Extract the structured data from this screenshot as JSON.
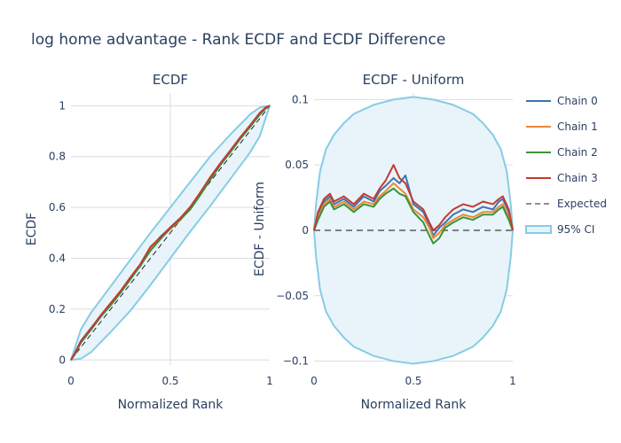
{
  "title": "log home advantage - Rank ECDF and ECDF Difference",
  "colors": {
    "chain_0": "#3b75af",
    "chain_1": "#ef8636",
    "chain_2": "#3b923b",
    "chain_3": "#c43932",
    "expected": "#222222",
    "ci_line": "#87cce4",
    "ci_fill": "#e6f3fa",
    "zero_dash": "#7f7f7f"
  },
  "legend": {
    "items": [
      {
        "key": "chain_0",
        "label": "Chain 0",
        "style": "line"
      },
      {
        "key": "chain_1",
        "label": "Chain 1",
        "style": "line"
      },
      {
        "key": "chain_2",
        "label": "Chain 2",
        "style": "line"
      },
      {
        "key": "chain_3",
        "label": "Chain 3",
        "style": "line"
      },
      {
        "key": "expected",
        "label": "Expected",
        "style": "dash"
      },
      {
        "key": "ci_line",
        "label": "95% CI",
        "style": "band"
      }
    ]
  },
  "chart_data": [
    {
      "type": "line",
      "title": "ECDF",
      "xlabel": "Normalized Rank",
      "ylabel": "ECDF",
      "xlim": [
        0,
        1
      ],
      "ylim": [
        -0.02,
        1.05
      ],
      "xticks": [
        0,
        0.5,
        1
      ],
      "xtick_labels": [
        "0",
        "0.5",
        "1"
      ],
      "yticks": [
        0,
        0.2,
        0.4,
        0.6,
        0.8,
        1
      ],
      "ytick_labels": [
        "0",
        "0.2",
        "0.4",
        "0.6",
        "0.8",
        "1"
      ],
      "grid": true,
      "ci_band": {
        "x": [
          0,
          0.05,
          0.1,
          0.2,
          0.3,
          0.4,
          0.5,
          0.6,
          0.7,
          0.8,
          0.9,
          0.95,
          1
        ],
        "lower": [
          0,
          0.005,
          0.03,
          0.11,
          0.195,
          0.295,
          0.4,
          0.505,
          0.605,
          0.71,
          0.815,
          0.88,
          1
        ],
        "upper": [
          0,
          0.12,
          0.185,
          0.29,
          0.395,
          0.5,
          0.6,
          0.7,
          0.8,
          0.885,
          0.965,
          0.993,
          1
        ]
      },
      "expected": {
        "x": [
          0,
          1
        ],
        "y": [
          0,
          1
        ]
      },
      "series": [
        {
          "key": "chain_0",
          "name": "Chain 0",
          "x": [
            0,
            0.02,
            0.05,
            0.1,
            0.15,
            0.2,
            0.25,
            0.3,
            0.35,
            0.4,
            0.45,
            0.5,
            0.55,
            0.6,
            0.65,
            0.7,
            0.75,
            0.8,
            0.85,
            0.9,
            0.95,
            0.98,
            1
          ],
          "y": [
            0,
            0.028,
            0.075,
            0.125,
            0.172,
            0.222,
            0.27,
            0.325,
            0.37,
            0.44,
            0.485,
            0.52,
            0.555,
            0.6,
            0.655,
            0.715,
            0.77,
            0.82,
            0.87,
            0.92,
            0.97,
            0.992,
            1
          ]
        },
        {
          "key": "chain_1",
          "name": "Chain 1",
          "x": [
            0,
            0.02,
            0.05,
            0.1,
            0.15,
            0.2,
            0.25,
            0.3,
            0.35,
            0.4,
            0.45,
            0.5,
            0.55,
            0.6,
            0.65,
            0.7,
            0.75,
            0.8,
            0.85,
            0.9,
            0.95,
            0.98,
            1
          ],
          "y": [
            0,
            0.025,
            0.07,
            0.12,
            0.174,
            0.219,
            0.268,
            0.322,
            0.375,
            0.435,
            0.478,
            0.515,
            0.55,
            0.598,
            0.652,
            0.712,
            0.768,
            0.818,
            0.872,
            0.918,
            0.968,
            0.99,
            1
          ]
        },
        {
          "key": "chain_2",
          "name": "Chain 2",
          "x": [
            0,
            0.02,
            0.05,
            0.1,
            0.15,
            0.2,
            0.25,
            0.3,
            0.35,
            0.4,
            0.45,
            0.5,
            0.55,
            0.6,
            0.65,
            0.7,
            0.75,
            0.8,
            0.85,
            0.9,
            0.95,
            0.98,
            1
          ],
          "y": [
            0,
            0.022,
            0.068,
            0.118,
            0.17,
            0.215,
            0.265,
            0.318,
            0.372,
            0.43,
            0.475,
            0.518,
            0.552,
            0.592,
            0.648,
            0.708,
            0.765,
            0.815,
            0.868,
            0.915,
            0.965,
            0.99,
            1
          ]
        },
        {
          "key": "chain_3",
          "name": "Chain 3",
          "x": [
            0,
            0.02,
            0.05,
            0.1,
            0.15,
            0.2,
            0.25,
            0.3,
            0.35,
            0.4,
            0.45,
            0.5,
            0.55,
            0.6,
            0.65,
            0.7,
            0.75,
            0.8,
            0.85,
            0.9,
            0.95,
            0.98,
            1
          ],
          "y": [
            0,
            0.027,
            0.073,
            0.123,
            0.176,
            0.224,
            0.272,
            0.326,
            0.378,
            0.445,
            0.482,
            0.522,
            0.558,
            0.602,
            0.658,
            0.718,
            0.772,
            0.822,
            0.874,
            0.922,
            0.972,
            0.993,
            1
          ]
        }
      ]
    },
    {
      "type": "line",
      "title": "ECDF - Uniform",
      "xlabel": "Normalized Rank",
      "ylabel": "ECDF - Uniform",
      "xlim": [
        0,
        1
      ],
      "ylim": [
        -0.103,
        0.105
      ],
      "xticks": [
        0,
        0.5,
        1
      ],
      "xtick_labels": [
        "0",
        "0.5",
        "1"
      ],
      "yticks": [
        -0.1,
        -0.05,
        0,
        0.05,
        0.1
      ],
      "ytick_labels": [
        "−0.1",
        "−0.05",
        "0",
        "0.05",
        "0.1"
      ],
      "grid": true,
      "ci_band": {
        "x": [
          0,
          0.01,
          0.03,
          0.06,
          0.1,
          0.15,
          0.2,
          0.3,
          0.4,
          0.45,
          0.5,
          0.55,
          0.6,
          0.7,
          0.8,
          0.85,
          0.9,
          0.94,
          0.97,
          0.99,
          1
        ],
        "lower": [
          0,
          -0.02,
          -0.045,
          -0.062,
          -0.073,
          -0.082,
          -0.089,
          -0.096,
          -0.1,
          -0.101,
          -0.102,
          -0.101,
          -0.1,
          -0.096,
          -0.089,
          -0.082,
          -0.073,
          -0.062,
          -0.045,
          -0.02,
          0
        ],
        "upper": [
          0,
          0.02,
          0.045,
          0.062,
          0.073,
          0.082,
          0.089,
          0.096,
          0.1,
          0.101,
          0.102,
          0.101,
          0.1,
          0.096,
          0.089,
          0.082,
          0.073,
          0.062,
          0.045,
          0.02,
          0
        ]
      },
      "expected": {
        "x": [
          0,
          1
        ],
        "y": [
          0,
          0
        ]
      },
      "series": [
        {
          "key": "chain_0",
          "name": "Chain 0",
          "x": [
            0,
            0.02,
            0.05,
            0.08,
            0.1,
            0.15,
            0.2,
            0.25,
            0.3,
            0.33,
            0.36,
            0.4,
            0.43,
            0.46,
            0.5,
            0.55,
            0.58,
            0.6,
            0.63,
            0.66,
            0.7,
            0.75,
            0.8,
            0.85,
            0.9,
            0.93,
            0.95,
            0.98,
            1
          ],
          "y": [
            0,
            0.012,
            0.022,
            0.026,
            0.02,
            0.024,
            0.018,
            0.026,
            0.022,
            0.03,
            0.034,
            0.04,
            0.036,
            0.042,
            0.02,
            0.014,
            0.004,
            -0.004,
            0.002,
            0.006,
            0.012,
            0.016,
            0.014,
            0.018,
            0.016,
            0.022,
            0.024,
            0.014,
            0
          ]
        },
        {
          "key": "chain_1",
          "name": "Chain 1",
          "x": [
            0,
            0.02,
            0.05,
            0.08,
            0.1,
            0.15,
            0.2,
            0.25,
            0.3,
            0.33,
            0.36,
            0.4,
            0.43,
            0.46,
            0.5,
            0.55,
            0.58,
            0.6,
            0.63,
            0.66,
            0.7,
            0.75,
            0.8,
            0.85,
            0.9,
            0.93,
            0.95,
            0.98,
            1
          ],
          "y": [
            0,
            0.01,
            0.02,
            0.024,
            0.018,
            0.022,
            0.016,
            0.022,
            0.02,
            0.026,
            0.03,
            0.036,
            0.032,
            0.028,
            0.016,
            0.01,
            0.002,
            -0.006,
            -0.002,
            0.004,
            0.008,
            0.012,
            0.01,
            0.014,
            0.014,
            0.018,
            0.02,
            0.01,
            0
          ]
        },
        {
          "key": "chain_2",
          "name": "Chain 2",
          "x": [
            0,
            0.02,
            0.05,
            0.08,
            0.1,
            0.15,
            0.2,
            0.25,
            0.3,
            0.33,
            0.36,
            0.4,
            0.43,
            0.46,
            0.5,
            0.55,
            0.58,
            0.6,
            0.63,
            0.66,
            0.7,
            0.75,
            0.8,
            0.85,
            0.9,
            0.93,
            0.95,
            0.98,
            1
          ],
          "y": [
            0,
            0.008,
            0.018,
            0.022,
            0.016,
            0.02,
            0.014,
            0.02,
            0.018,
            0.024,
            0.028,
            0.032,
            0.028,
            0.026,
            0.014,
            0.006,
            -0.004,
            -0.01,
            -0.006,
            0.002,
            0.006,
            0.01,
            0.008,
            0.012,
            0.012,
            0.016,
            0.018,
            0.008,
            0
          ]
        },
        {
          "key": "chain_3",
          "name": "Chain 3",
          "x": [
            0,
            0.02,
            0.05,
            0.08,
            0.1,
            0.15,
            0.2,
            0.25,
            0.3,
            0.33,
            0.36,
            0.4,
            0.43,
            0.46,
            0.5,
            0.55,
            0.58,
            0.6,
            0.63,
            0.66,
            0.7,
            0.75,
            0.8,
            0.85,
            0.9,
            0.93,
            0.95,
            0.98,
            1
          ],
          "y": [
            0,
            0.014,
            0.024,
            0.028,
            0.022,
            0.026,
            0.02,
            0.028,
            0.024,
            0.032,
            0.038,
            0.05,
            0.04,
            0.036,
            0.022,
            0.016,
            0.006,
            0.0,
            0.004,
            0.01,
            0.016,
            0.02,
            0.018,
            0.022,
            0.02,
            0.024,
            0.026,
            0.016,
            0
          ]
        }
      ]
    }
  ]
}
